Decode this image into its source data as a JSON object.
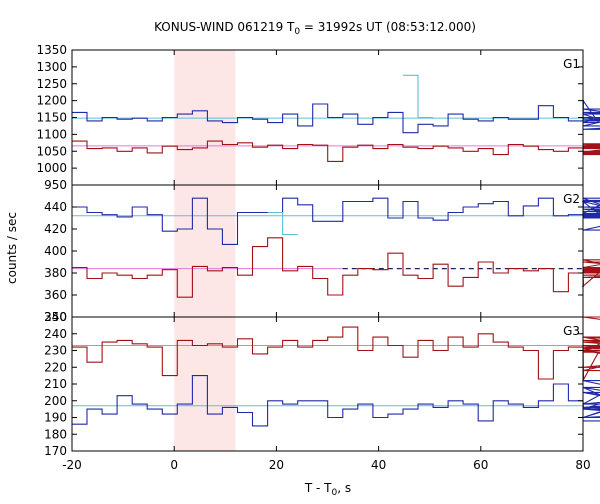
{
  "chart_data": {
    "type": "line",
    "title_main": "KONUS-WIND 061219 T",
    "title_sub": "0",
    "title_rest": " = 31992s UT (08:53:12.000)",
    "ylabel": "counts / sec",
    "xlabel_main": "T - T",
    "xlabel_sub": "0",
    "xlabel_rest": ", s",
    "xlim": [
      -20,
      80
    ],
    "x_ticks": [
      -20,
      0,
      20,
      40,
      60,
      80
    ],
    "x_tick_labels": [
      "-20",
      "0",
      "20",
      "40",
      "60",
      "80"
    ],
    "highlight": {
      "from": 0,
      "to": 12,
      "color": "#fde6e6"
    },
    "colors": {
      "blue": "#1f2aa8",
      "red": "#a01218",
      "bg_blue": "#5bc0d8",
      "bg_red": "#e07ad6"
    },
    "panels": [
      {
        "label": "G1",
        "ylim": [
          950,
          1350
        ],
        "y_ticks": [
          950,
          1000,
          1050,
          1100,
          1150,
          1200,
          1250,
          1300,
          1350
        ],
        "y_tick_labels": [
          "950",
          "1000",
          "1050",
          "1100",
          "1150",
          "1200",
          "1250",
          "1300",
          "1350"
        ],
        "step": 2.944,
        "x_start": -20,
        "series": [
          {
            "name": "blue",
            "values": [
              1165,
              1140,
              1150,
              1145,
              1148,
              1140,
              1150,
              1160,
              1170,
              1140,
              1135,
              1150,
              1145,
              1135,
              1160,
              1125,
              1190,
              1150,
              1160,
              1130,
              1150,
              1165,
              1105,
              1130,
              1125,
              1160,
              1145,
              1140,
              1150,
              1145,
              1145,
              1185,
              1150,
              1140,
              1200,
              1135,
              1160,
              1115,
              1125,
              1175,
              1140,
              1165,
              1140,
              1145,
              1150,
              1145,
              1150,
              1150,
              1150,
              1150
            ],
            "overlay": {
              "start_index": 22,
              "values": [
                1275,
                1150
              ]
            }
          },
          {
            "name": "red",
            "values": [
              1080,
              1058,
              1060,
              1050,
              1060,
              1045,
              1065,
              1055,
              1060,
              1080,
              1070,
              1075,
              1062,
              1068,
              1058,
              1070,
              1068,
              1020,
              1062,
              1068,
              1058,
              1070,
              1062,
              1058,
              1065,
              1060,
              1050,
              1058,
              1040,
              1070,
              1065,
              1055,
              1050,
              1060,
              1042,
              1048,
              1058,
              1070,
              1062,
              1065,
              1068,
              1060,
              1050,
              1040,
              1072,
              1060,
              1040,
              1062,
              1045,
              1065
            ],
            "overlay": null
          }
        ],
        "background": [
          {
            "name": "bg_blue",
            "value": 1148,
            "dashed_from": 49
          },
          {
            "name": "bg_red",
            "value": 1066,
            "dashed_from": null
          }
        ]
      },
      {
        "label": "G2",
        "ylim": [
          340,
          460
        ],
        "y_ticks": [
          340,
          360,
          380,
          400,
          420,
          440
        ],
        "y_tick_labels": [
          "340",
          "360",
          "380",
          "400",
          "420",
          "440"
        ],
        "step": 2.944,
        "x_start": -20,
        "series": [
          {
            "name": "blue",
            "values": [
              440,
              435,
              433,
              431,
              440,
              433,
              418,
              420,
              448,
              420,
              406,
              435,
              435,
              435,
              448,
              442,
              427,
              427,
              445,
              445,
              448,
              430,
              445,
              430,
              428,
              435,
              440,
              443,
              445,
              432,
              441,
              448,
              432,
              433,
              445,
              434,
              448,
              433,
              430,
              438,
              432,
              445,
              419,
              446,
              434,
              440,
              433,
              436,
              431,
              430
            ],
            "overlay": {
              "start_index": 13,
              "values": [
                435,
                415
              ]
            }
          },
          {
            "name": "red",
            "values": [
              385,
              375,
              380,
              378,
              375,
              378,
              383,
              358,
              386,
              382,
              385,
              378,
              404,
              412,
              382,
              386,
              375,
              360,
              378,
              384,
              383,
              398,
              378,
              375,
              388,
              368,
              376,
              390,
              380,
              384,
              382,
              384,
              363,
              380,
              368,
              380,
              385,
              392,
              380,
              382,
              381,
              383,
              376,
              378,
              380,
              390,
              376,
              385,
              380,
              384
            ],
            "overlay": null
          }
        ],
        "background": [
          {
            "name": "bg_blue",
            "value": 432,
            "dashed_from": null
          },
          {
            "name": "bg_red",
            "value": 384,
            "dashed_from": 18
          }
        ]
      },
      {
        "label": "G3",
        "ylim": [
          170,
          250
        ],
        "y_ticks": [
          170,
          180,
          190,
          200,
          210,
          220,
          230,
          240,
          250
        ],
        "y_tick_labels": [
          "170",
          "180",
          "190",
          "200",
          "210",
          "220",
          "230",
          "240",
          "250"
        ],
        "step": 2.944,
        "x_start": -20,
        "series": [
          {
            "name": "blue",
            "values": [
              186,
              195,
              192,
              203,
              198,
              195,
              192,
              198,
              215,
              192,
              196,
              193,
              185,
              200,
              198,
              200,
              200,
              190,
              195,
              198,
              190,
              192,
              195,
              198,
              196,
              200,
              198,
              188,
              200,
              198,
              196,
              200,
              210,
              200,
              195,
              198,
              208,
              196,
              190,
              205,
              195,
              190,
              212,
              195,
              198,
              208,
              190,
              196,
              205,
              188
            ],
            "overlay": null
          },
          {
            "name": "red",
            "values": [
              232,
              223,
              235,
              236,
              234,
              232,
              215,
              236,
              233,
              234,
              232,
              237,
              228,
              232,
              236,
              232,
              236,
              238,
              244,
              230,
              238,
              233,
              226,
              236,
              230,
              238,
              232,
              240,
              235,
              232,
              230,
              213,
              230,
              232,
              212,
              229,
              238,
              233,
              230,
              238,
              235,
              230,
              218,
              236,
              232,
              230,
              220,
              231,
              250,
              232
            ],
            "overlay": null
          }
        ],
        "background": [
          {
            "name": "bg_blue",
            "value": 197,
            "dashed_from": null
          },
          {
            "name": "bg_red",
            "value": 233,
            "dashed_from": null
          }
        ]
      }
    ]
  }
}
